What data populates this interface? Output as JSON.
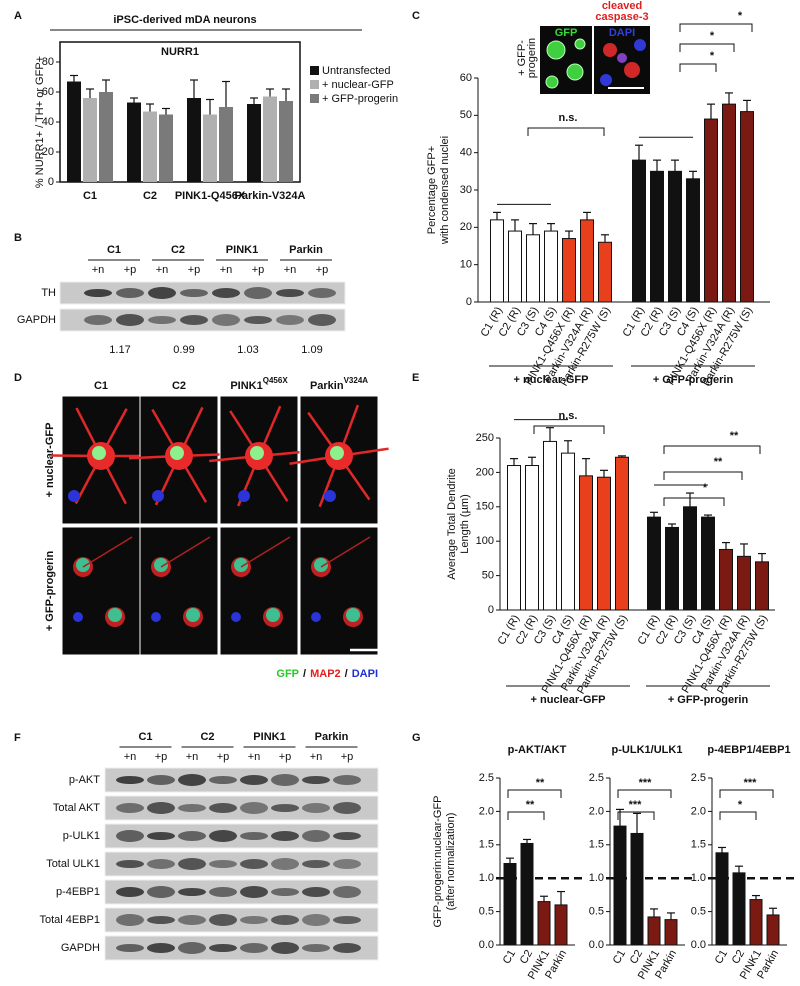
{
  "panel_labels": [
    "A",
    "B",
    "C",
    "D",
    "E",
    "F",
    "G"
  ],
  "chart_data": [
    {
      "type": "grouped-bar",
      "header": "iPSC-derived mDA neurons",
      "title": "NURR1",
      "ylabel": "% NURR1+ / TH+ or GFP+",
      "categories": [
        "C1",
        "C2",
        "PINK1-Q456X",
        "Parkin-V324A"
      ],
      "series": [
        {
          "name": "Untransfected",
          "color": "#111111",
          "values": [
            67,
            53,
            56,
            52
          ],
          "errors": [
            4,
            3,
            12,
            4
          ]
        },
        {
          "name": "+ nuclear-GFP",
          "color": "#b0b0b0",
          "values": [
            56,
            47,
            45,
            57
          ],
          "errors": [
            6,
            5,
            10,
            5
          ]
        },
        {
          "name": "+ GFP-progerin",
          "color": "#7a7a7a",
          "values": [
            60,
            45,
            50,
            54
          ],
          "errors": [
            8,
            4,
            17,
            8
          ]
        }
      ],
      "ylim": [
        0,
        80
      ],
      "yticks": [
        0,
        20,
        40,
        60,
        80
      ],
      "legend": "right"
    },
    {
      "type": "bar",
      "ylabel": [
        "Percentage GFP+",
        "with condensed nuclei"
      ],
      "categories": [
        "C1 (R)",
        "C2 (R)",
        "C3 (S)",
        "C4 (S)",
        "PINK1-Q456X (R)",
        "Parkin-V324A (R)",
        "Parkin-R275W (S)",
        "C1 (R)",
        "C2 (R)",
        "C3 (S)",
        "C4 (S)",
        "PINK1-Q456X (R)",
        "Parkin-V324A (R)",
        "Parkin-R275W (S)"
      ],
      "values": [
        22,
        19,
        18,
        19,
        17,
        22,
        16,
        38,
        35,
        35,
        33,
        49,
        53,
        51
      ],
      "errors": [
        2,
        3,
        3,
        2,
        2,
        2,
        2,
        4,
        3,
        3,
        2,
        4,
        3,
        3
      ],
      "colors": [
        "#ffffff",
        "#ffffff",
        "#ffffff",
        "#ffffff",
        "#e8401c",
        "#e8401c",
        "#e8401c",
        "#111111",
        "#111111",
        "#111111",
        "#111111",
        "#7a1a12",
        "#7a1a12",
        "#7a1a12"
      ],
      "groups": [
        "+ nuclear-GFP",
        "+ GFP-progerin"
      ],
      "ylim": [
        0,
        60
      ],
      "yticks": [
        0,
        10,
        20,
        30,
        40,
        50,
        60
      ],
      "annotations": [
        "n.s.",
        "*",
        "*",
        "*"
      ],
      "inset": {
        "side_label": [
          "+ GFP-",
          "progerin"
        ],
        "channel_1": "GFP",
        "channel_2": "DAPI",
        "title": [
          "cleaved",
          "caspase-3"
        ]
      }
    },
    {
      "type": "bar",
      "ylabel": [
        "Average Total Dendrite",
        "Length (µm)"
      ],
      "categories": [
        "C1 (R)",
        "C2 (R)",
        "C3 (S)",
        "C4 (S)",
        "PINK1-Q456X (R)",
        "Parkin-V324A (R)",
        "Parkin-R275W (S)",
        "C1 (R)",
        "C2 (R)",
        "C3 (S)",
        "C4 (S)",
        "PINK1-Q456X (R)",
        "Parkin-V324A (R)",
        "Parkin-R275W (S)"
      ],
      "values": [
        210,
        210,
        245,
        228,
        195,
        193,
        222,
        135,
        120,
        150,
        135,
        88,
        78,
        70
      ],
      "errors": [
        10,
        12,
        20,
        18,
        25,
        10,
        2,
        7,
        5,
        20,
        3,
        10,
        18,
        12
      ],
      "colors": [
        "#ffffff",
        "#ffffff",
        "#ffffff",
        "#ffffff",
        "#e8401c",
        "#e8401c",
        "#e8401c",
        "#111111",
        "#111111",
        "#111111",
        "#111111",
        "#7a1a12",
        "#7a1a12",
        "#7a1a12"
      ],
      "groups": [
        "+ nuclear-GFP",
        "+ GFP-progerin"
      ],
      "ylim": [
        0,
        250
      ],
      "yticks": [
        0,
        50,
        100,
        150,
        200,
        250
      ],
      "annotations": [
        "n.s.",
        "**",
        "**",
        "*"
      ]
    },
    {
      "type": "bar",
      "title": "p-AKT/AKT",
      "ylabel": [
        "GFP-progerin:nuclear-GFP",
        "(after normalization)"
      ],
      "categories": [
        "C1",
        "C2",
        "PINK1",
        "Parkin"
      ],
      "values": [
        1.22,
        1.52,
        0.65,
        0.6
      ],
      "errors": [
        0.08,
        0.06,
        0.08,
        0.2
      ],
      "colors": [
        "#111111",
        "#111111",
        "#7a1a12",
        "#7a1a12"
      ],
      "reference_line": 1,
      "ylim": [
        0,
        2.5
      ],
      "yticks": [
        {
          "value": 0,
          "label": "0.0"
        },
        {
          "value": 0.5,
          "label": "0.5"
        },
        {
          "value": 1,
          "label": "1.0"
        },
        {
          "value": 1.5,
          "label": "1.5"
        },
        {
          "value": 2,
          "label": "2.0"
        },
        {
          "value": 2.5,
          "label": "2.5"
        }
      ],
      "annotations": [
        "**",
        "**"
      ]
    },
    {
      "type": "bar",
      "title": "p-ULK1/ULK1",
      "categories": [
        "C1",
        "C2",
        "PINK1",
        "Parkin"
      ],
      "values": [
        1.78,
        1.67,
        0.42,
        0.38
      ],
      "errors": [
        0.25,
        0.3,
        0.12,
        0.1
      ],
      "colors": [
        "#111111",
        "#111111",
        "#7a1a12",
        "#7a1a12"
      ],
      "reference_line": 1,
      "ylim": [
        0,
        2.5
      ],
      "yticks": [
        {
          "value": 0,
          "label": "0.0"
        },
        {
          "value": 0.5,
          "label": "0.5"
        },
        {
          "value": 1,
          "label": "1.0"
        },
        {
          "value": 1.5,
          "label": "1.5"
        },
        {
          "value": 2,
          "label": "2.0"
        },
        {
          "value": 2.5,
          "label": "2.5"
        }
      ],
      "annotations": [
        "***",
        "***"
      ]
    },
    {
      "type": "bar",
      "title": "p-4EBP1/4EBP1",
      "categories": [
        "C1",
        "C2",
        "PINK1",
        "Parkin"
      ],
      "values": [
        1.38,
        1.08,
        0.68,
        0.45
      ],
      "errors": [
        0.08,
        0.1,
        0.06,
        0.1
      ],
      "colors": [
        "#111111",
        "#111111",
        "#7a1a12",
        "#7a1a12"
      ],
      "reference_line": 1,
      "ylim": [
        0,
        2.5
      ],
      "yticks": [
        {
          "value": 0,
          "label": "0.0"
        },
        {
          "value": 0.5,
          "label": "0.5"
        },
        {
          "value": 1,
          "label": "1.0"
        },
        {
          "value": 1.5,
          "label": "1.5"
        },
        {
          "value": 2,
          "label": "2.0"
        },
        {
          "value": 2.5,
          "label": "2.5"
        }
      ],
      "annotations": [
        "***",
        "*"
      ]
    }
  ],
  "blot_b": {
    "groups": [
      "C1",
      "C2",
      "PINK1",
      "Parkin"
    ],
    "lanes": [
      "+n",
      "+p",
      "+n",
      "+p",
      "+n",
      "+p",
      "+n",
      "+p"
    ],
    "rows": [
      "TH",
      "GAPDH"
    ],
    "ratios": [
      1.17,
      0.99,
      1.03,
      1.09
    ]
  },
  "images_d": {
    "columns": [
      {
        "text": "C1"
      },
      {
        "text": "C2"
      },
      {
        "text": "PINK1",
        "sup": "Q456X"
      },
      {
        "text": "Parkin",
        "sup": "V324A"
      }
    ],
    "rows": [
      "+ nuclear-GFP",
      "+ GFP-progerin"
    ],
    "legend": [
      {
        "text": "GFP",
        "color": "#22cc22"
      },
      {
        "text": "/",
        "color": "#111111"
      },
      {
        "text": "MAP2",
        "color": "#e02020"
      },
      {
        "text": "/",
        "color": "#111111"
      },
      {
        "text": "DAPI",
        "color": "#2030d0"
      }
    ]
  },
  "blot_f": {
    "groups": [
      "C1",
      "C2",
      "PINK1",
      "Parkin"
    ],
    "lanes": [
      "+n",
      "+p",
      "+n",
      "+p",
      "+n",
      "+p",
      "+n",
      "+p"
    ],
    "rows": [
      "p-AKT",
      "Total AKT",
      "p-ULK1",
      "Total ULK1",
      "p-4EBP1",
      "Total 4EBP1",
      "GAPDH"
    ]
  }
}
